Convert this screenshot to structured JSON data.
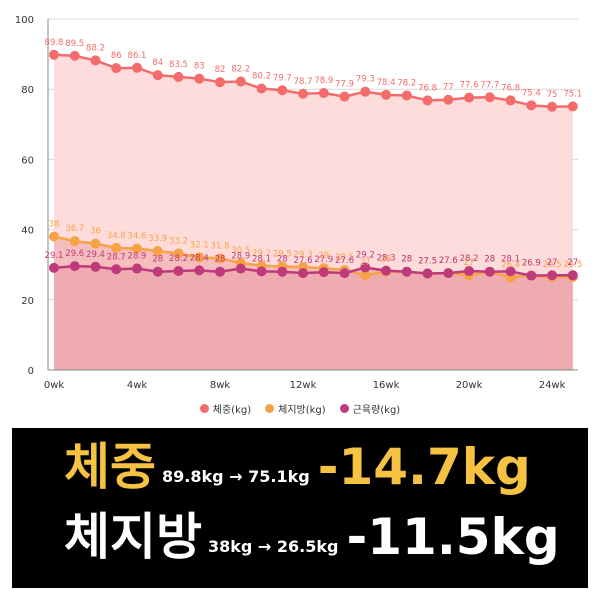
{
  "chart_data": {
    "type": "area",
    "x": [
      0,
      1,
      2,
      3,
      4,
      5,
      6,
      7,
      8,
      9,
      10,
      11,
      12,
      13,
      14,
      15,
      16,
      17,
      18,
      19,
      20,
      21,
      22,
      23,
      24,
      25
    ],
    "xticks": [
      0,
      4,
      8,
      12,
      16,
      20,
      24
    ],
    "xtick_labels": [
      "0wk",
      "4wk",
      "8wk",
      "12wk",
      "16wk",
      "20wk",
      "24wk"
    ],
    "ylim": [
      0,
      100
    ],
    "yticks": [
      0,
      20,
      40,
      60,
      80,
      100
    ],
    "grid": true,
    "legend_position": "bottom",
    "series": [
      {
        "name": "체중(kg)",
        "color": "#f46b6b",
        "fill": "#ffdcdc",
        "values": [
          89.8,
          89.5,
          88.2,
          86,
          86.1,
          84,
          83.5,
          83,
          82,
          82.2,
          80.2,
          79.7,
          78.7,
          78.9,
          77.9,
          79.3,
          78.4,
          78.2,
          76.8,
          77,
          77.6,
          77.7,
          76.8,
          75.4,
          75,
          75.1
        ],
        "labels": [
          "89.8",
          "89.5",
          "88.2",
          "86",
          "86.1",
          "84",
          "83.5",
          "83",
          "82",
          "82.2",
          "80.2",
          "79.7",
          "78.7",
          "78.9",
          "77.9",
          "79.3",
          "78.4",
          "78.2",
          "76.8",
          "77",
          "77.6",
          "77.7",
          "76.8",
          "75.4",
          "75",
          "75.1"
        ]
      },
      {
        "name": "체지방(kg)",
        "color": "#f7a244",
        "fill": "#f2b3b3",
        "values": [
          38,
          36.7,
          36,
          34.8,
          34.6,
          33.9,
          33.2,
          32.1,
          31.8,
          30.5,
          29.7,
          29.5,
          29.3,
          29,
          28.5,
          27,
          28,
          28,
          27.5,
          27.6,
          27,
          28,
          26.4,
          26.9,
          26.5,
          26.5
        ],
        "labels": [
          "38",
          "36.7",
          "36",
          "34.8",
          "34.6",
          "33.9",
          "33.2",
          "32.1",
          "31.8",
          "30.5",
          "29.7",
          "29.5",
          "29.3",
          "29",
          "28.5",
          "27",
          "28",
          "28",
          "27.5",
          "27.6",
          "27",
          "28",
          "26.4",
          "26.9",
          "26.5",
          "26.5"
        ]
      },
      {
        "name": "근육량(kg)",
        "color": "#bf3a7a",
        "fill": "#f2b3b3",
        "values": [
          29.1,
          29.6,
          29.4,
          28.7,
          28.9,
          28,
          28.2,
          28.4,
          28,
          28.9,
          28.1,
          28,
          27.6,
          27.9,
          27.6,
          29.2,
          28.3,
          28,
          27.5,
          27.6,
          28.2,
          28,
          28.1,
          26.9,
          27,
          27
        ],
        "labels": [
          "29.1",
          "29.6",
          "29.4",
          "28.7",
          "28.9",
          "28",
          "28.2",
          "28.4",
          "28",
          "28.9",
          "28.1",
          "28",
          "27.6",
          "27.9",
          "27.6",
          "29.2",
          "28.3",
          "28",
          "27.5",
          "27.6",
          "28.2",
          "28",
          "28.1",
          "26.9",
          "27",
          "27"
        ]
      }
    ]
  },
  "banner": {
    "row1": {
      "title": "체중",
      "detail": "89.8kg → 75.1kg",
      "delta": "-14.7kg"
    },
    "row2": {
      "title": "체지방",
      "detail": "38kg → 26.5kg",
      "delta": "-11.5kg"
    }
  }
}
